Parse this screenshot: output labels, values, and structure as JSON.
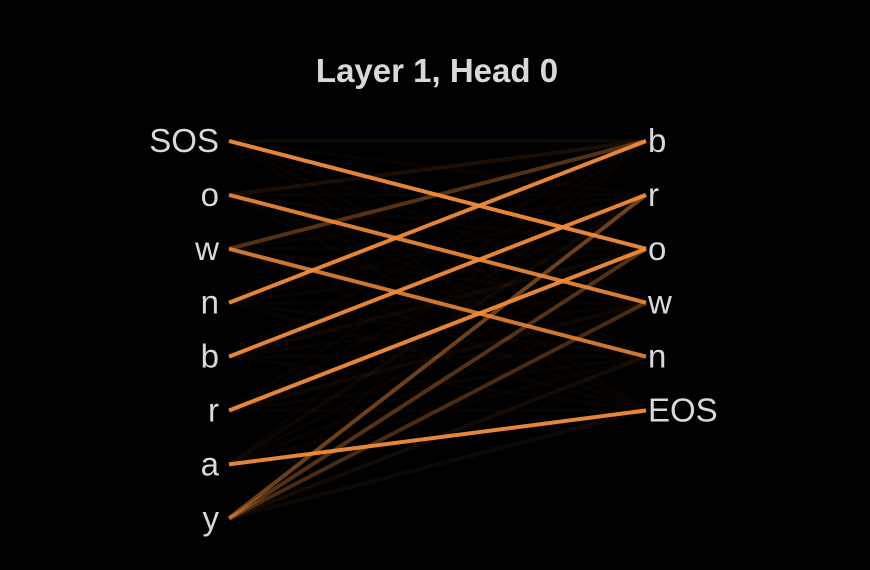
{
  "title": "Layer 1, Head 0",
  "line_color": "#f28c3a",
  "background_color": "#000000",
  "text_color": "#d9d9d9",
  "source_tokens": [
    "SOS",
    "o",
    "w",
    "n",
    "b",
    "r",
    "a",
    "y"
  ],
  "target_tokens": [
    "b",
    "r",
    "o",
    "w",
    "n",
    "EOS"
  ],
  "attention": [
    {
      "source": 0,
      "target": 2,
      "weight": 0.95
    },
    {
      "source": 0,
      "target": 0,
      "weight": 0.06
    },
    {
      "source": 1,
      "target": 3,
      "weight": 0.9
    },
    {
      "source": 1,
      "target": 0,
      "weight": 0.1
    },
    {
      "source": 2,
      "target": 4,
      "weight": 0.85
    },
    {
      "source": 2,
      "target": 0,
      "weight": 0.35
    },
    {
      "source": 3,
      "target": 0,
      "weight": 0.95
    },
    {
      "source": 4,
      "target": 1,
      "weight": 0.95
    },
    {
      "source": 5,
      "target": 2,
      "weight": 0.95
    },
    {
      "source": 6,
      "target": 5,
      "weight": 0.95
    },
    {
      "source": 6,
      "target": 1,
      "weight": 0.05
    },
    {
      "source": 7,
      "target": 1,
      "weight": 0.45
    },
    {
      "source": 7,
      "target": 2,
      "weight": 0.35
    },
    {
      "source": 7,
      "target": 3,
      "weight": 0.3
    },
    {
      "source": 7,
      "target": 4,
      "weight": 0.08
    },
    {
      "source": 7,
      "target": 5,
      "weight": 0.06
    },
    {
      "source": 5,
      "target": 3,
      "weight": 0.05
    },
    {
      "source": 4,
      "target": 2,
      "weight": 0.05
    }
  ]
}
